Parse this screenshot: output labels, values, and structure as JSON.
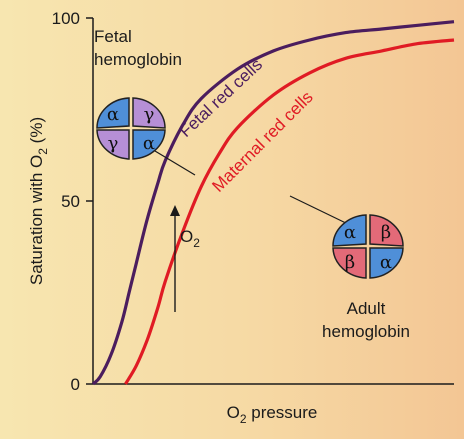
{
  "chart_data": {
    "type": "line",
    "title": "",
    "xlabel": "O2 pressure",
    "ylabel": "Saturation with O2 (%)",
    "ylim": [
      0,
      100
    ],
    "y_ticks": [
      "0",
      "50",
      "100"
    ],
    "grid": false,
    "series": [
      {
        "name": "Fetal red cells",
        "color": "#4b1d5e",
        "x": [
          0,
          2,
          5,
          8,
          10,
          12,
          15,
          18,
          20,
          25,
          30,
          40,
          50,
          60,
          70,
          80,
          90,
          100
        ],
        "y": [
          0,
          2,
          8,
          17,
          25,
          33,
          45,
          55,
          61,
          71,
          78,
          86,
          91,
          94,
          96,
          97,
          98,
          99
        ]
      },
      {
        "name": "Maternal red cells",
        "color": "#e01b24",
        "x": [
          9,
          12,
          15,
          18,
          20,
          25,
          30,
          35,
          40,
          50,
          60,
          70,
          80,
          90,
          100
        ],
        "y": [
          0,
          5,
          12,
          21,
          28,
          42,
          54,
          63,
          70,
          79,
          85,
          89,
          91,
          93,
          94
        ]
      }
    ],
    "annotations": {
      "o2_arrow_label": "O",
      "o2_arrow_sub": "2",
      "fetal_label_line1": "Fetal",
      "fetal_label_line2": "hemoglobin",
      "adult_label_line1": "Adult",
      "adult_label_line2": "hemoglobin",
      "fetal_subunits": [
        "α",
        "γ",
        "γ",
        "α"
      ],
      "adult_subunits": [
        "α",
        "β",
        "β",
        "α"
      ]
    },
    "axis_text": {
      "y_prefix": "Saturation with O",
      "y_sub": "2",
      "y_suffix": " (%)",
      "x_prefix": "O",
      "x_sub": "2",
      "x_suffix": " pressure"
    },
    "colors": {
      "alpha": "#4f8fd8",
      "gamma": "#b68fd6",
      "beta": "#e36a78"
    }
  }
}
